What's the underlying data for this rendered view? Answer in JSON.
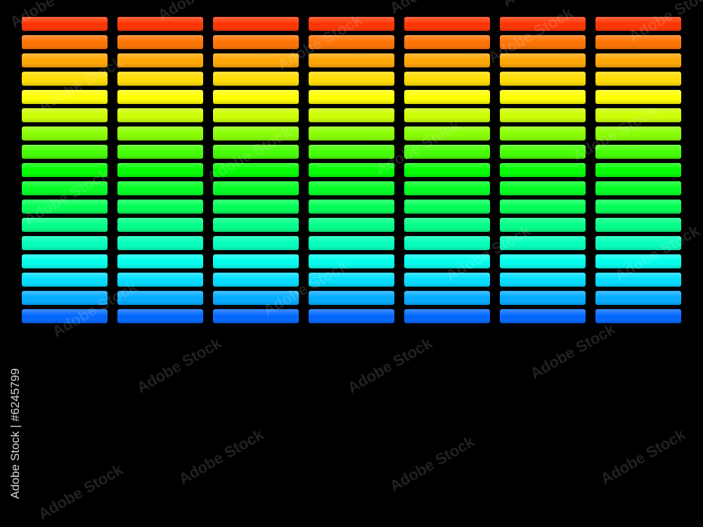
{
  "watermark": {
    "brand": "Adobe Stock",
    "id_label": "Adobe Stock | #6245799"
  }
}
